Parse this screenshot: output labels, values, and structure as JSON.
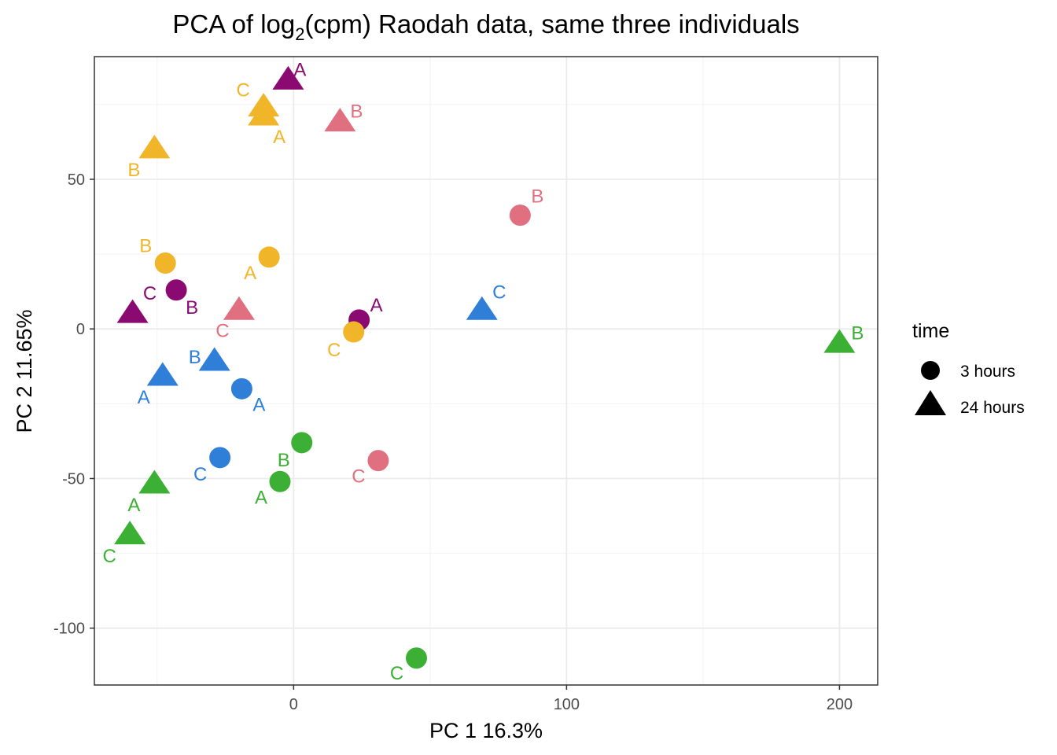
{
  "chart_data": {
    "type": "scatter",
    "title_main": "PCA of log",
    "title_sub": "2",
    "title_rest": "(cpm) Raodah data, same three individuals",
    "xlabel": "PC 1 16.3%",
    "ylabel": "PC 2 11.65%",
    "xlim": [
      -73,
      214
    ],
    "ylim": [
      -119,
      91
    ],
    "xticks": [
      0,
      100,
      200
    ],
    "yticks": [
      -100,
      -50,
      0,
      50
    ],
    "grid": true,
    "legend": {
      "title": "time",
      "position": "right",
      "entries": [
        {
          "label": "3 hours",
          "shape": "circle"
        },
        {
          "label": "24 hours",
          "shape": "triangle"
        }
      ]
    },
    "colors": {
      "purple": "#8b0a72",
      "yellow": "#f1b52a",
      "pink": "#e07080",
      "blue": "#2f7fd8",
      "green": "#3cb034"
    },
    "points": [
      {
        "x": -2,
        "y": 83,
        "shape": "triangle",
        "color": "purple",
        "label": "A",
        "lx": 15,
        "ly": -6
      },
      {
        "x": -11,
        "y": 74,
        "shape": "triangle",
        "color": "yellow",
        "label": "C",
        "lx": -26,
        "ly": -14
      },
      {
        "x": -11,
        "y": 71,
        "shape": "triangle",
        "color": "yellow",
        "label": "A",
        "lx": 20,
        "ly": 34
      },
      {
        "x": 17,
        "y": 69,
        "shape": "triangle",
        "color": "pink",
        "label": "B",
        "lx": 21,
        "ly": -6
      },
      {
        "x": -51,
        "y": 60,
        "shape": "triangle",
        "color": "yellow",
        "label": "B",
        "lx": -26,
        "ly": 34
      },
      {
        "x": 83,
        "y": 38,
        "shape": "circle",
        "color": "pink",
        "label": "B",
        "lx": 22,
        "ly": -16
      },
      {
        "x": -47,
        "y": 22,
        "shape": "circle",
        "color": "yellow",
        "label": "B",
        "lx": -25,
        "ly": -14
      },
      {
        "x": -9,
        "y": 24,
        "shape": "circle",
        "color": "yellow",
        "label": "A",
        "lx": -24,
        "ly": 28
      },
      {
        "x": -43,
        "y": 13,
        "shape": "circle",
        "color": "purple",
        "label": "B",
        "lx": 20,
        "ly": 30
      },
      {
        "x": -59,
        "y": 5,
        "shape": "triangle",
        "color": "purple",
        "label": "C",
        "lx": 22,
        "ly": -18
      },
      {
        "x": -20,
        "y": 6,
        "shape": "triangle",
        "color": "pink",
        "label": "C",
        "lx": -21,
        "ly": 33
      },
      {
        "x": 24,
        "y": 3,
        "shape": "circle",
        "color": "purple",
        "label": "A",
        "lx": 22,
        "ly": -11
      },
      {
        "x": 22,
        "y": -1,
        "shape": "circle",
        "color": "yellow",
        "label": "C",
        "lx": -25,
        "ly": 31
      },
      {
        "x": 69,
        "y": 6,
        "shape": "triangle",
        "color": "blue",
        "label": "C",
        "lx": 22,
        "ly": -16
      },
      {
        "x": 200,
        "y": -5,
        "shape": "triangle",
        "color": "green",
        "label": "B",
        "lx": 23,
        "ly": -6
      },
      {
        "x": -29,
        "y": -11,
        "shape": "triangle",
        "color": "blue",
        "label": "B",
        "lx": -25,
        "ly": 2
      },
      {
        "x": -48,
        "y": -16,
        "shape": "triangle",
        "color": "blue",
        "label": "A",
        "lx": -24,
        "ly": 34
      },
      {
        "x": -19,
        "y": -20,
        "shape": "circle",
        "color": "blue",
        "label": "A",
        "lx": 22,
        "ly": 28
      },
      {
        "x": 3,
        "y": -38,
        "shape": "circle",
        "color": "green",
        "label": "B",
        "lx": -23,
        "ly": 30
      },
      {
        "x": -27,
        "y": -43,
        "shape": "circle",
        "color": "blue",
        "label": "C",
        "lx": -25,
        "ly": 29
      },
      {
        "x": 31,
        "y": -44,
        "shape": "circle",
        "color": "pink",
        "label": "C",
        "lx": -25,
        "ly": 28
      },
      {
        "x": -5,
        "y": -51,
        "shape": "circle",
        "color": "green",
        "label": "A",
        "lx": -24,
        "ly": 28
      },
      {
        "x": -51,
        "y": -52,
        "shape": "triangle",
        "color": "green",
        "label": "A",
        "lx": -26,
        "ly": 34
      },
      {
        "x": -60,
        "y": -69,
        "shape": "triangle",
        "color": "green",
        "label": "C",
        "lx": -26,
        "ly": 34
      },
      {
        "x": 45,
        "y": -110,
        "shape": "circle",
        "color": "green",
        "label": "C",
        "lx": -25,
        "ly": 27
      }
    ]
  }
}
